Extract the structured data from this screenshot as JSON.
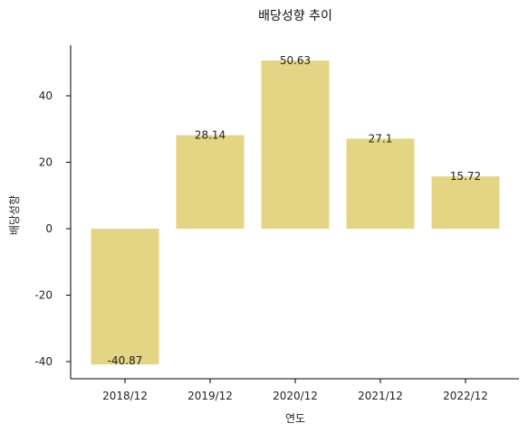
{
  "chart_data": {
    "type": "bar",
    "title": "배당성향 추이",
    "xlabel": "연도",
    "ylabel": "배당성향",
    "categories": [
      "2018/12",
      "2019/12",
      "2020/12",
      "2021/12",
      "2022/12"
    ],
    "values": [
      -40.87,
      28.14,
      50.63,
      27.1,
      15.72
    ],
    "data_labels": [
      "-40.87",
      "28.14",
      "50.63",
      "27.1",
      "15.72"
    ],
    "ylim": [
      -45,
      55
    ],
    "yticks": [
      -40,
      -20,
      0,
      20,
      40
    ],
    "ytick_labels": [
      "-40",
      "-20",
      "0",
      "20",
      "40"
    ],
    "grid": false,
    "bar_color": "#e4d584"
  }
}
